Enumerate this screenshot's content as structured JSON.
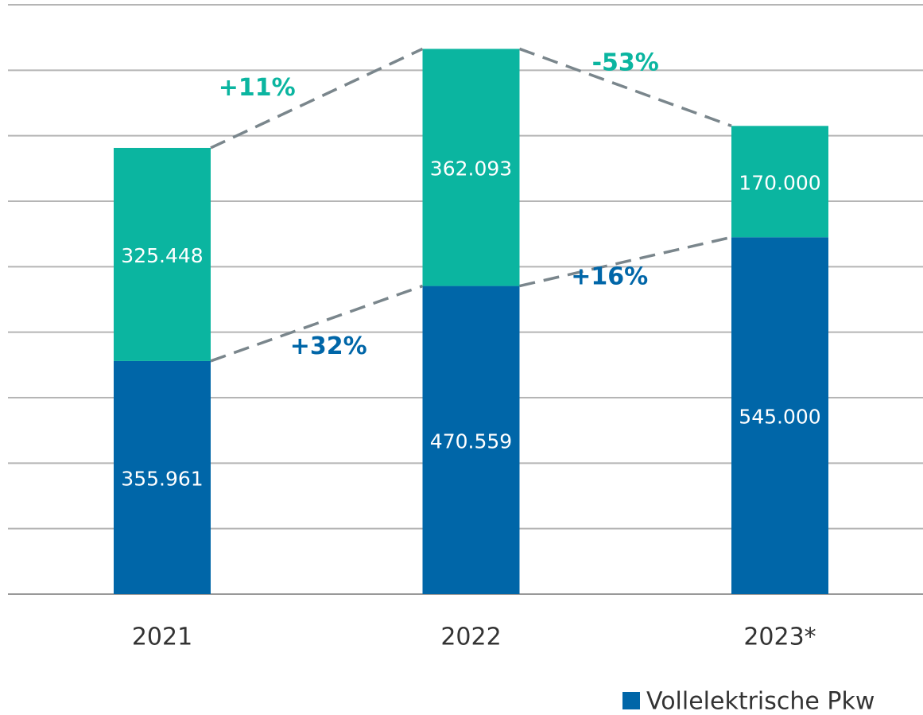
{
  "chart_data": {
    "type": "stacked_bar",
    "categories": [
      "2021",
      "2022",
      "2023*"
    ],
    "series": [
      {
        "name": "Vollelektrische Pkw",
        "color": "#0066a8",
        "values": [
          355961,
          470559,
          545000
        ],
        "value_labels": [
          "355.961",
          "470.559",
          "545.000"
        ],
        "changes": [
          "+32%",
          "+16%"
        ]
      },
      {
        "color": "#0bb5a0",
        "values": [
          325448,
          362093,
          170000
        ],
        "value_labels": [
          "325.448",
          "362.093",
          "170.000"
        ],
        "changes": [
          "+11%",
          "-53%"
        ]
      }
    ],
    "ylim": [
      0,
      900000
    ],
    "yticks": [
      0,
      100000,
      200000,
      300000,
      400000,
      500000,
      600000,
      700000,
      800000,
      900000
    ],
    "grid": true
  }
}
